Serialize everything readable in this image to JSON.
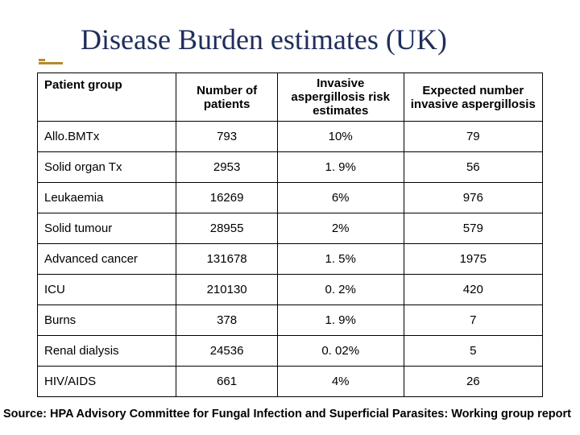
{
  "title": "Disease Burden estimates (UK)",
  "table": {
    "type": "table",
    "columns": [
      "Patient group",
      "Number of patients",
      "Invasive aspergillosis risk estimates",
      "Expected number invasive aspergillosis"
    ],
    "rows": [
      {
        "group": "Allo.BMTx",
        "patients": "793",
        "risk": "10%",
        "expected": "79"
      },
      {
        "group": "Solid organ Tx",
        "patients": "2953",
        "risk": "1. 9%",
        "expected": "56"
      },
      {
        "group": "Leukaemia",
        "patients": "16269",
        "risk": "6%",
        "expected": "976"
      },
      {
        "group": "Solid tumour",
        "patients": "28955",
        "risk": "2%",
        "expected": "579"
      },
      {
        "group": "Advanced cancer",
        "patients": "131678",
        "risk": "1. 5%",
        "expected": "1975"
      },
      {
        "group": "ICU",
        "patients": "210130",
        "risk": "0. 2%",
        "expected": "420"
      },
      {
        "group": "Burns",
        "patients": "378",
        "risk": "1. 9%",
        "expected": "7"
      },
      {
        "group": "Renal dialysis",
        "patients": "24536",
        "risk": "0. 02%",
        "expected": "5"
      },
      {
        "group": "HIV/AIDS",
        "patients": "661",
        "risk": "4%",
        "expected": "26"
      }
    ],
    "border_color": "#000000",
    "background_color": "#ffffff",
    "header_fontsize": 15,
    "cell_fontsize": 15
  },
  "source": "Source: HPA Advisory Committee for Fungal Infection and Superficial Parasites: Working group report",
  "colors": {
    "title_color": "#1f2e5a",
    "accent_color": "#b88a2e",
    "text_color": "#000000",
    "background": "#ffffff"
  }
}
